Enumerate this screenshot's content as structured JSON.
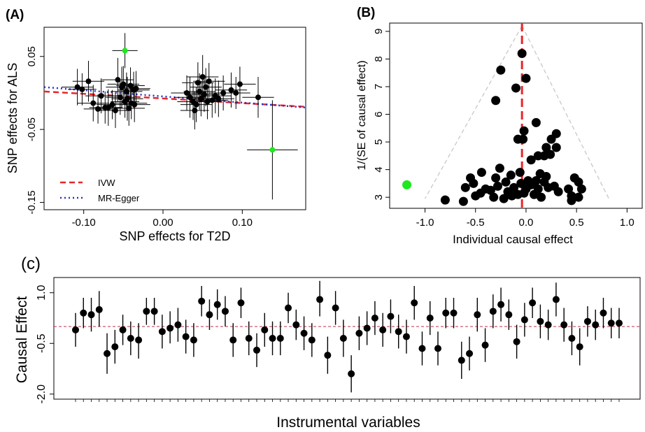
{
  "chart_data": [
    {
      "panel": "(A)",
      "type": "scatter",
      "xlabel": "SNP effects for T2D",
      "ylabel": "SNP effects for ALS",
      "xlim": [
        -0.15,
        0.18
      ],
      "ylim": [
        -0.16,
        0.09
      ],
      "xticks": [
        "-0.10",
        "0.00",
        "0.10"
      ],
      "xtick_values": [
        -0.1,
        0.0,
        0.1
      ],
      "yticks": [
        "0.05",
        "-0.05",
        "-0.15"
      ],
      "ytick_values": [
        0.05,
        -0.05,
        -0.15
      ],
      "legend": {
        "placement": "bottom-left",
        "entries": [
          "IVW",
          "MR-Egger"
        ]
      },
      "lines": [
        {
          "name": "IVW",
          "color": "#e8262a",
          "style": "dashed",
          "x": [
            -0.15,
            0.18
          ],
          "y": [
            0.002,
            -0.019
          ]
        },
        {
          "name": "MR-Egger",
          "color": "#2431c8",
          "style": "dotted",
          "x": [
            -0.15,
            0.18
          ],
          "y": [
            0.008,
            -0.02
          ]
        }
      ],
      "points": [
        {
          "x": -0.108,
          "y": 0.008,
          "xe": 0.02,
          "ye": 0.025
        },
        {
          "x": -0.102,
          "y": 0.005,
          "xe": 0.018,
          "ye": 0.022
        },
        {
          "x": -0.094,
          "y": 0.016,
          "xe": 0.02,
          "ye": 0.028
        },
        {
          "x": -0.088,
          "y": -0.014,
          "xe": 0.02,
          "ye": 0.025
        },
        {
          "x": -0.082,
          "y": -0.022,
          "xe": 0.018,
          "ye": 0.02
        },
        {
          "x": -0.078,
          "y": -0.004,
          "xe": 0.02,
          "ye": 0.024
        },
        {
          "x": -0.073,
          "y": -0.02,
          "xe": 0.02,
          "ye": 0.022
        },
        {
          "x": -0.069,
          "y": -0.02,
          "xe": 0.018,
          "ye": 0.025
        },
        {
          "x": -0.064,
          "y": -0.016,
          "xe": 0.02,
          "ye": 0.02
        },
        {
          "x": -0.06,
          "y": -0.024,
          "xe": 0.02,
          "ye": 0.024
        },
        {
          "x": -0.057,
          "y": 0.018,
          "xe": 0.02,
          "ye": 0.03
        },
        {
          "x": -0.054,
          "y": -0.006,
          "xe": 0.018,
          "ye": 0.024
        },
        {
          "x": -0.052,
          "y": 0.008,
          "xe": 0.02,
          "ye": 0.028
        },
        {
          "x": -0.05,
          "y": 0.012,
          "xe": 0.02,
          "ye": 0.025
        },
        {
          "x": -0.048,
          "y": -0.012,
          "xe": 0.018,
          "ye": 0.022
        },
        {
          "x": -0.046,
          "y": 0.002,
          "xe": 0.02,
          "ye": 0.026
        },
        {
          "x": -0.045,
          "y": -0.008,
          "xe": 0.02,
          "ye": 0.03
        },
        {
          "x": -0.043,
          "y": -0.021,
          "xe": 0.02,
          "ye": 0.024
        },
        {
          "x": -0.041,
          "y": 0.01,
          "xe": 0.018,
          "ye": 0.025
        },
        {
          "x": -0.04,
          "y": -0.014,
          "xe": 0.02,
          "ye": 0.022
        },
        {
          "x": -0.037,
          "y": 0.004,
          "xe": 0.02,
          "ye": 0.025
        },
        {
          "x": -0.036,
          "y": -0.016,
          "xe": 0.02,
          "ye": 0.024
        },
        {
          "x": -0.034,
          "y": 0.006,
          "xe": 0.018,
          "ye": 0.024
        },
        {
          "x": 0.03,
          "y": 0.0,
          "xe": 0.02,
          "ye": 0.024
        },
        {
          "x": 0.034,
          "y": -0.006,
          "xe": 0.02,
          "ye": 0.028
        },
        {
          "x": 0.038,
          "y": -0.012,
          "xe": 0.02,
          "ye": 0.025
        },
        {
          "x": 0.04,
          "y": -0.024,
          "xe": 0.018,
          "ye": 0.026
        },
        {
          "x": 0.042,
          "y": -0.016,
          "xe": 0.02,
          "ye": 0.024
        },
        {
          "x": 0.044,
          "y": 0.014,
          "xe": 0.02,
          "ye": 0.028
        },
        {
          "x": 0.046,
          "y": 0.002,
          "xe": 0.02,
          "ye": 0.025
        },
        {
          "x": 0.048,
          "y": -0.008,
          "xe": 0.018,
          "ye": 0.024
        },
        {
          "x": 0.05,
          "y": 0.022,
          "xe": 0.02,
          "ye": 0.03
        },
        {
          "x": 0.052,
          "y": -0.002,
          "xe": 0.02,
          "ye": 0.024
        },
        {
          "x": 0.054,
          "y": 0.008,
          "xe": 0.02,
          "ye": 0.026
        },
        {
          "x": 0.056,
          "y": -0.012,
          "xe": 0.018,
          "ye": 0.024
        },
        {
          "x": 0.058,
          "y": 0.016,
          "xe": 0.02,
          "ye": 0.025
        },
        {
          "x": 0.062,
          "y": -0.01,
          "xe": 0.02,
          "ye": 0.024
        },
        {
          "x": 0.066,
          "y": -0.004,
          "xe": 0.02,
          "ye": 0.024
        },
        {
          "x": 0.07,
          "y": -0.008,
          "xe": 0.02,
          "ye": 0.025
        },
        {
          "x": 0.076,
          "y": 0.0,
          "xe": 0.018,
          "ye": 0.024
        },
        {
          "x": 0.086,
          "y": 0.004,
          "xe": 0.02,
          "ye": 0.024
        },
        {
          "x": 0.092,
          "y": 0.0,
          "xe": 0.018,
          "ye": 0.022
        },
        {
          "x": 0.097,
          "y": 0.012,
          "xe": 0.02,
          "ye": 0.024
        },
        {
          "x": 0.12,
          "y": -0.006,
          "xe": 0.02,
          "ye": 0.028
        }
      ],
      "outliers": [
        {
          "x": -0.048,
          "y": 0.058,
          "xe": 0.016,
          "ye": 0.024,
          "color": "#1fe81f"
        },
        {
          "x": 0.138,
          "y": -0.078,
          "xe": 0.032,
          "ye": 0.068,
          "color": "#1fe81f"
        }
      ]
    },
    {
      "panel": "(B)",
      "type": "scatter",
      "xlabel": "Individual causal effect",
      "ylabel": "1/(SE of causal effect)",
      "xlim": [
        -1.35,
        1.15
      ],
      "ylim": [
        2.6,
        9.3
      ],
      "xticks": [
        "-1.0",
        "-0.5",
        "0.0",
        "0.5",
        "1.0"
      ],
      "xtick_values": [
        -1.0,
        -0.5,
        0.0,
        0.5,
        1.0
      ],
      "yticks": [
        "3",
        "4",
        "5",
        "6",
        "7",
        "8",
        "9"
      ],
      "ytick_values": [
        3,
        4,
        5,
        6,
        7,
        8,
        9
      ],
      "reference_line": {
        "x": -0.04,
        "color": "#e8262a",
        "style": "dashed"
      },
      "funnel": {
        "apex": [
          -0.04,
          9.2
        ],
        "left_base": [
          -1.0,
          2.95
        ],
        "right_base": [
          0.82,
          2.95
        ],
        "color": "#c8c8c8"
      },
      "points": [
        [
          -0.04,
          8.2
        ],
        [
          -0.25,
          7.6
        ],
        [
          -0.1,
          6.95
        ],
        [
          0.0,
          7.3
        ],
        [
          -0.3,
          6.5
        ],
        [
          0.1,
          5.7
        ],
        [
          -0.02,
          5.4
        ],
        [
          -0.08,
          5.1
        ],
        [
          -0.03,
          5.1
        ],
        [
          0.3,
          5.3
        ],
        [
          0.25,
          5.1
        ],
        [
          0.2,
          4.8
        ],
        [
          0.3,
          4.8
        ],
        [
          0.18,
          4.5
        ],
        [
          0.24,
          4.55
        ],
        [
          0.05,
          4.35
        ],
        [
          0.12,
          4.5
        ],
        [
          -0.44,
          3.9
        ],
        [
          -0.26,
          4.05
        ],
        [
          -0.3,
          3.7
        ],
        [
          -0.15,
          3.8
        ],
        [
          -0.06,
          3.9
        ],
        [
          -0.55,
          3.7
        ],
        [
          -0.52,
          3.5
        ],
        [
          -0.6,
          3.35
        ],
        [
          -0.45,
          3.15
        ],
        [
          -0.35,
          3.25
        ],
        [
          -0.28,
          3.4
        ],
        [
          -0.2,
          3.55
        ],
        [
          -0.12,
          3.35
        ],
        [
          -0.05,
          3.5
        ],
        [
          0.02,
          3.6
        ],
        [
          0.12,
          3.3
        ],
        [
          0.18,
          3.55
        ],
        [
          0.22,
          3.35
        ],
        [
          0.28,
          3.4
        ],
        [
          0.32,
          3.2
        ],
        [
          0.42,
          3.3
        ],
        [
          0.48,
          3.7
        ],
        [
          0.52,
          3.55
        ],
        [
          0.55,
          3.3
        ],
        [
          0.52,
          3.0
        ],
        [
          0.45,
          3.05
        ],
        [
          0.15,
          3.0
        ],
        [
          0.08,
          3.1
        ],
        [
          -0.02,
          3.15
        ],
        [
          -0.14,
          3.05
        ],
        [
          -0.22,
          2.95
        ],
        [
          -0.32,
          3.0
        ],
        [
          -0.4,
          3.3
        ],
        [
          -0.5,
          3.05
        ],
        [
          -0.62,
          2.85
        ],
        [
          -0.8,
          2.9
        ],
        [
          0.45,
          2.88
        ],
        [
          0.1,
          3.6
        ],
        [
          0.14,
          3.85
        ],
        [
          0.2,
          3.75
        ],
        [
          -0.18,
          3.2
        ],
        [
          0.0,
          3.3
        ],
        [
          -0.08,
          3.1
        ],
        [
          0.05,
          3.45
        ]
      ],
      "outliers": [
        {
          "x": -1.18,
          "y": 3.45,
          "color": "#1fe81f"
        }
      ]
    },
    {
      "panel": "(c)",
      "type": "scatter",
      "xlabel": "Instrumental variables",
      "ylabel": "Causal Effect",
      "ylim": [
        -2.15,
        1.45
      ],
      "yticks": [
        "1.0",
        "-0.5",
        "-2.0"
      ],
      "ytick_values": [
        1.0,
        -0.5,
        -2.0
      ],
      "reference_line": {
        "y": 0.0,
        "color": "#c0304f",
        "style": "dashed"
      },
      "points": [
        {
          "y": -0.1,
          "lo": -0.6,
          "hi": 0.4
        },
        {
          "y": 0.4,
          "lo": -0.05,
          "hi": 0.85
        },
        {
          "y": 0.35,
          "lo": -0.15,
          "hi": 0.85
        },
        {
          "y": 0.5,
          "lo": 0.0,
          "hi": 1.05
        },
        {
          "y": -0.8,
          "lo": -1.4,
          "hi": -0.2
        },
        {
          "y": -0.6,
          "lo": -1.1,
          "hi": -0.1
        },
        {
          "y": -0.1,
          "lo": -0.55,
          "hi": 0.35
        },
        {
          "y": -0.35,
          "lo": -0.85,
          "hi": 0.15
        },
        {
          "y": -0.4,
          "lo": -0.95,
          "hi": 0.1
        },
        {
          "y": 0.45,
          "lo": 0.05,
          "hi": 0.85
        },
        {
          "y": 0.45,
          "lo": 0.05,
          "hi": 0.85
        },
        {
          "y": -0.15,
          "lo": -0.65,
          "hi": 0.35
        },
        {
          "y": -0.05,
          "lo": -0.5,
          "hi": 0.45
        },
        {
          "y": 0.05,
          "lo": -0.45,
          "hi": 0.55
        },
        {
          "y": -0.3,
          "lo": -0.8,
          "hi": 0.2
        },
        {
          "y": -0.4,
          "lo": -0.9,
          "hi": 0.1
        },
        {
          "y": 0.75,
          "lo": 0.3,
          "hi": 1.2
        },
        {
          "y": 0.35,
          "lo": -0.1,
          "hi": 0.8
        },
        {
          "y": 0.65,
          "lo": 0.2,
          "hi": 1.1
        },
        {
          "y": 0.45,
          "lo": 0.0,
          "hi": 0.9
        },
        {
          "y": -0.4,
          "lo": -0.9,
          "hi": 0.1
        },
        {
          "y": 0.7,
          "lo": 0.25,
          "hi": 1.15
        },
        {
          "y": -0.35,
          "lo": -0.85,
          "hi": 0.15
        },
        {
          "y": -0.7,
          "lo": -1.2,
          "hi": -0.2
        },
        {
          "y": -0.1,
          "lo": -0.6,
          "hi": 0.4
        },
        {
          "y": -0.35,
          "lo": -0.85,
          "hi": 0.15
        },
        {
          "y": -0.35,
          "lo": -0.85,
          "hi": 0.15
        },
        {
          "y": 0.55,
          "lo": 0.1,
          "hi": 1.0
        },
        {
          "y": 0.05,
          "lo": -0.4,
          "hi": 0.5
        },
        {
          "y": -0.2,
          "lo": -0.7,
          "hi": 0.3
        },
        {
          "y": -0.4,
          "lo": -0.9,
          "hi": 0.1
        },
        {
          "y": 0.8,
          "lo": 0.3,
          "hi": 1.35
        },
        {
          "y": -0.85,
          "lo": -1.4,
          "hi": -0.3
        },
        {
          "y": 0.55,
          "lo": 0.05,
          "hi": 1.05
        },
        {
          "y": -0.35,
          "lo": -0.9,
          "hi": 0.2
        },
        {
          "y": -1.4,
          "lo": -1.95,
          "hi": -0.85
        },
        {
          "y": -0.2,
          "lo": -0.7,
          "hi": 0.3
        },
        {
          "y": -0.05,
          "lo": -0.55,
          "hi": 0.45
        },
        {
          "y": 0.25,
          "lo": -0.25,
          "hi": 0.75
        },
        {
          "y": -0.1,
          "lo": -0.6,
          "hi": 0.4
        },
        {
          "y": 0.3,
          "lo": -0.2,
          "hi": 0.8
        },
        {
          "y": -0.15,
          "lo": -0.65,
          "hi": 0.35
        },
        {
          "y": -0.3,
          "lo": -0.8,
          "hi": 0.2
        },
        {
          "y": 0.7,
          "lo": 0.2,
          "hi": 1.2
        },
        {
          "y": -0.65,
          "lo": -1.15,
          "hi": -0.15
        },
        {
          "y": 0.25,
          "lo": -0.25,
          "hi": 0.75
        },
        {
          "y": -0.65,
          "lo": -1.15,
          "hi": -0.15
        },
        {
          "y": 0.4,
          "lo": -0.05,
          "hi": 0.85
        },
        {
          "y": 0.4,
          "lo": -0.05,
          "hi": 0.85
        },
        {
          "y": -1.0,
          "lo": -1.55,
          "hi": -0.45
        },
        {
          "y": -0.8,
          "lo": -1.3,
          "hi": -0.3
        },
        {
          "y": 0.35,
          "lo": -0.15,
          "hi": 0.85
        },
        {
          "y": -0.55,
          "lo": -1.05,
          "hi": -0.05
        },
        {
          "y": 0.45,
          "lo": -0.05,
          "hi": 0.95
        },
        {
          "y": 0.65,
          "lo": 0.15,
          "hi": 1.15
        },
        {
          "y": 0.35,
          "lo": -0.1,
          "hi": 0.8
        },
        {
          "y": -0.45,
          "lo": -0.95,
          "hi": 0.05
        },
        {
          "y": 0.2,
          "lo": -0.3,
          "hi": 0.7
        },
        {
          "y": 0.7,
          "lo": 0.25,
          "hi": 1.15
        },
        {
          "y": 0.15,
          "lo": -0.35,
          "hi": 0.65
        },
        {
          "y": 0.05,
          "lo": -0.4,
          "hi": 0.5
        },
        {
          "y": 0.8,
          "lo": 0.3,
          "hi": 1.3
        },
        {
          "y": 0.05,
          "lo": -0.45,
          "hi": 0.55
        },
        {
          "y": -0.35,
          "lo": -0.85,
          "hi": 0.15
        },
        {
          "y": -0.6,
          "lo": -1.15,
          "hi": -0.05
        },
        {
          "y": 0.15,
          "lo": -0.3,
          "hi": 0.6
        },
        {
          "y": 0.05,
          "lo": -0.4,
          "hi": 0.5
        },
        {
          "y": 0.4,
          "lo": -0.05,
          "hi": 0.85
        },
        {
          "y": 0.1,
          "lo": -0.35,
          "hi": 0.55
        },
        {
          "y": 0.1,
          "lo": -0.35,
          "hi": 0.55
        }
      ]
    }
  ]
}
